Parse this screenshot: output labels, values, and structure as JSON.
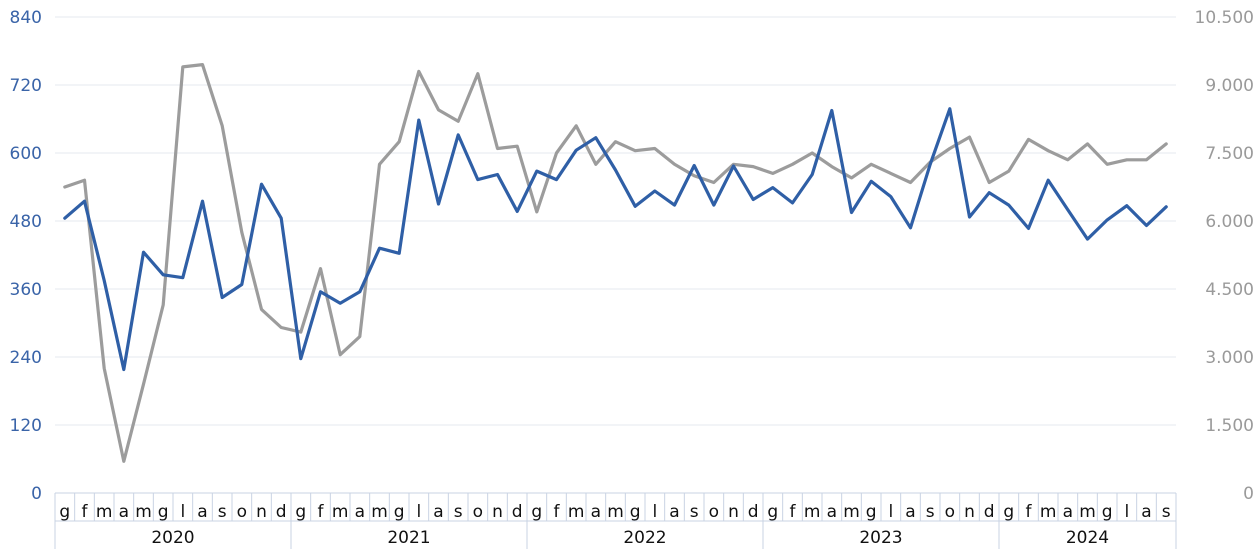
{
  "chart_data": {
    "type": "line",
    "title": "",
    "xlabel": "",
    "ylabel": "",
    "grid": true,
    "legend": "none",
    "years": [
      {
        "label": "2020",
        "months": 12
      },
      {
        "label": "2021",
        "months": 12
      },
      {
        "label": "2022",
        "months": 12
      },
      {
        "label": "2023",
        "months": 12
      },
      {
        "label": "2024",
        "months": 9
      }
    ],
    "month_labels": [
      "g",
      "f",
      "m",
      "a",
      "m",
      "g",
      "l",
      "a",
      "s",
      "o",
      "n",
      "d"
    ],
    "y_left": {
      "min": 0,
      "max": 840,
      "ticks": [
        "0",
        "120",
        "240",
        "360",
        "480",
        "600",
        "720",
        "840"
      ],
      "color": "#3a64a8"
    },
    "y_right": {
      "min": 0,
      "max": 10500,
      "ticks": [
        "0",
        "1.500",
        "3.000",
        "4.500",
        "6.000",
        "7.500",
        "9.000",
        "10.500"
      ],
      "color": "#9a9a9a"
    },
    "series": [
      {
        "axis": "left",
        "color": "#2f5fa6",
        "values": [
          485,
          515,
          375,
          218,
          425,
          385,
          380,
          515,
          345,
          368,
          545,
          485,
          237,
          355,
          335,
          355,
          432,
          423,
          658,
          510,
          632,
          553,
          562,
          497,
          568,
          553,
          605,
          627,
          570,
          506,
          533,
          508,
          578,
          508,
          577,
          518,
          539,
          512,
          562,
          675,
          495,
          550,
          523,
          468,
          580,
          678,
          487,
          530,
          508,
          467,
          552,
          500,
          448,
          482,
          507,
          472,
          505
        ]
      },
      {
        "axis": "right",
        "color": "#9c9c9c",
        "values": [
          6750,
          6900,
          2750,
          700,
          2400,
          4150,
          9400,
          9450,
          8100,
          5750,
          4050,
          3650,
          3550,
          4950,
          3050,
          3450,
          7250,
          7750,
          9300,
          8450,
          8200,
          9250,
          7600,
          7650,
          6200,
          7500,
          8100,
          7250,
          7750,
          7550,
          7600,
          7250,
          7000,
          6850,
          7250,
          7200,
          7050,
          7250,
          7500,
          7200,
          6950,
          7250,
          7050,
          6850,
          7300,
          7600,
          7850,
          6850,
          7100,
          7800,
          7550,
          7350,
          7700,
          7250,
          7350,
          7350,
          7700
        ]
      }
    ]
  }
}
